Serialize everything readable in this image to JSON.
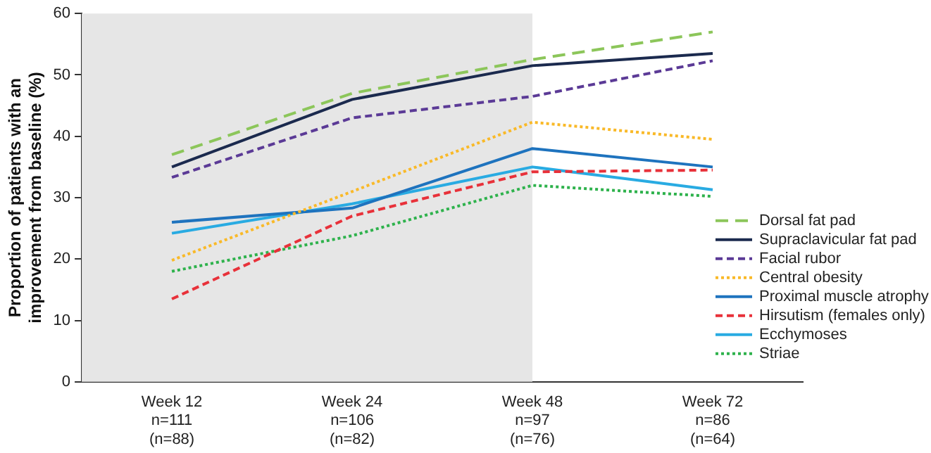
{
  "chart_data": {
    "type": "line",
    "ylabel": "Proportion of patients with an\nimprovement from baseline (%)",
    "categories": [
      "Week 12\nn=111\n(n=88)",
      "Week 24\nn=106\n(n=82)",
      "Week 48\nn=97\n(n=76)",
      "Week 72\nn=86\n(n=64)"
    ],
    "ylim": [
      0,
      60
    ],
    "yticks": [
      0,
      10,
      20,
      30,
      40,
      50,
      60
    ],
    "grid": false,
    "legend": "bottom right",
    "marker": "none",
    "bands": [
      {
        "axis": "x",
        "from": "Week 12\nn=111\n(n=88)",
        "to": "Week 48\nn=97\n(n=76)",
        "color": "#e6e6e6"
      }
    ],
    "series": [
      {
        "name": "Dorsal fat pad",
        "color": "#8cc65a",
        "line_style": "dashed",
        "values": [
          37,
          47,
          52.5,
          57
        ]
      },
      {
        "name": "Supraclavicular fat pad",
        "color": "#1b2a4e",
        "line_style": "solid",
        "values": [
          35,
          46,
          51.5,
          53.5
        ]
      },
      {
        "name": "Facial rubor",
        "color": "#5b3a96",
        "line_style": "dashed",
        "values": [
          33.3,
          43,
          46.5,
          52.3
        ]
      },
      {
        "name": "Central obesity",
        "color": "#f9b928",
        "line_style": "dotted",
        "values": [
          19.8,
          31,
          42.3,
          39.5
        ]
      },
      {
        "name": "Proximal muscle atrophy",
        "color": "#1e73be",
        "line_style": "solid",
        "values": [
          26,
          28.3,
          38,
          35
        ]
      },
      {
        "name": "Hirsutism (females only)",
        "color": "#e8313a",
        "line_style": "dashed",
        "values": [
          13.5,
          27,
          34.2,
          34.5
        ]
      },
      {
        "name": "Ecchymoses",
        "color": "#29abe2",
        "line_style": "solid",
        "values": [
          24.2,
          29,
          35,
          31.3
        ]
      },
      {
        "name": "Striae",
        "color": "#2eb24c",
        "line_style": "dotted",
        "values": [
          18,
          23.8,
          32,
          30.2
        ]
      }
    ]
  }
}
